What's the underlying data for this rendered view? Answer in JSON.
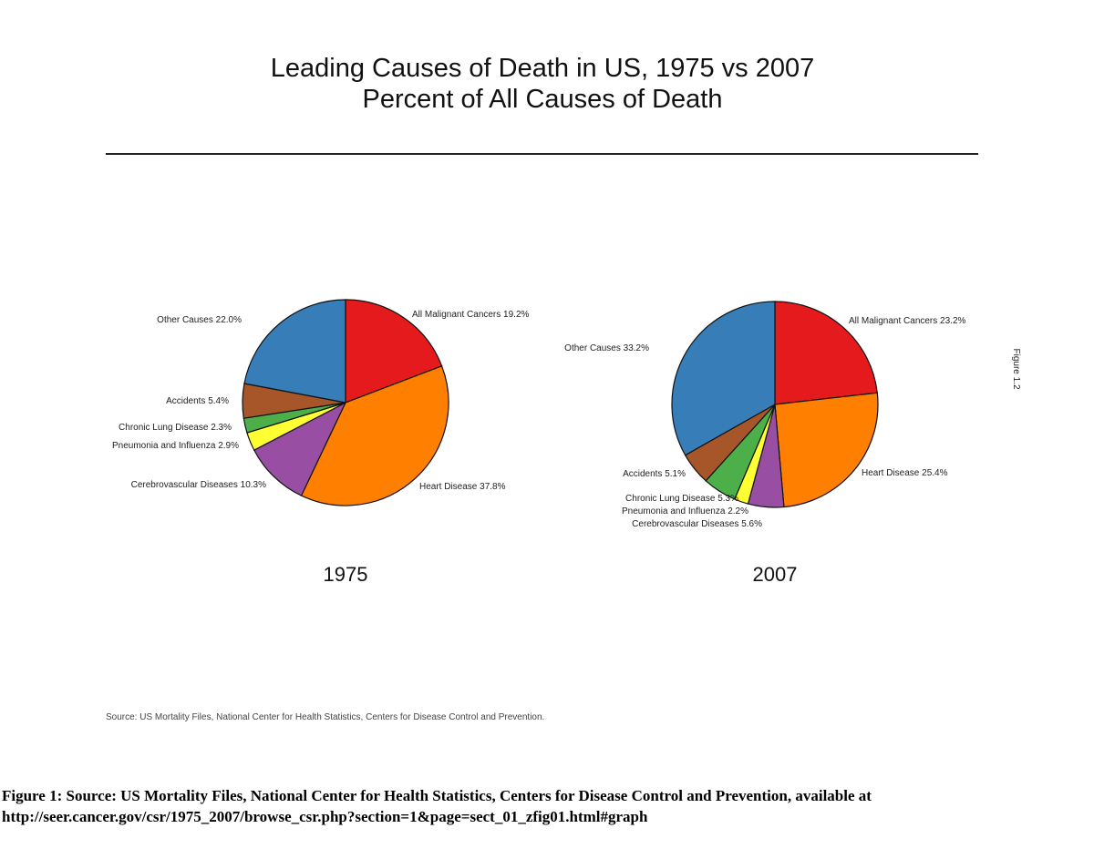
{
  "header": {
    "title": "Leading Causes of Death in US, 1975 vs 2007",
    "subtitle": "Percent of All Causes of Death"
  },
  "side_label": "Figure 1.2",
  "source_note": "Source: US Mortality Files, National Center for Health Statistics, Centers for Disease Control and Prevention.",
  "caption": {
    "line1": "Figure 1: Source: US Mortality Files, National Center for Health Statistics, Centers for Disease Control and Prevention, available at",
    "line2": "http://seer.cancer.gov/csr/1975_2007/browse_csr.php?section=1&page=sect_01_zfig01.html#graph"
  },
  "chart_data": [
    {
      "type": "pie",
      "title": "1975",
      "slices": [
        {
          "name": "All Malignant Cancers",
          "value": 19.2,
          "label": "All Malignant Cancers 19.2%",
          "color": "#e41a1c"
        },
        {
          "name": "Heart Disease",
          "value": 37.8,
          "label": "Heart Disease 37.8%",
          "color": "#ff7f00"
        },
        {
          "name": "Cerebrovascular Diseases",
          "value": 10.3,
          "label": "Cerebrovascular Diseases 10.3%",
          "color": "#984ea3"
        },
        {
          "name": "Pneumonia and Influenza",
          "value": 2.9,
          "label": "Pneumonia and Influenza 2.9%",
          "color": "#ffff33"
        },
        {
          "name": "Chronic Lung Disease",
          "value": 2.3,
          "label": "Chronic Lung Disease 2.3%",
          "color": "#4daf4a"
        },
        {
          "name": "Accidents",
          "value": 5.4,
          "label": "Accidents 5.4%",
          "color": "#a65628"
        },
        {
          "name": "Other Causes",
          "value": 22.0,
          "label": "Other Causes 22.0%",
          "color": "#377eb8"
        }
      ]
    },
    {
      "type": "pie",
      "title": "2007",
      "slices": [
        {
          "name": "All Malignant Cancers",
          "value": 23.2,
          "label": "All Malignant Cancers 23.2%",
          "color": "#e41a1c"
        },
        {
          "name": "Heart Disease",
          "value": 25.4,
          "label": "Heart Disease 25.4%",
          "color": "#ff7f00"
        },
        {
          "name": "Cerebrovascular Diseases",
          "value": 5.6,
          "label": "Cerebrovascular Diseases 5.6%",
          "color": "#984ea3"
        },
        {
          "name": "Pneumonia and Influenza",
          "value": 2.2,
          "label": "Pneumonia and Influenza 2.2%",
          "color": "#ffff33"
        },
        {
          "name": "Chronic Lung Disease",
          "value": 5.3,
          "label": "Chronic Lung Disease 5.3%",
          "color": "#4daf4a"
        },
        {
          "name": "Accidents",
          "value": 5.1,
          "label": "Accidents 5.1%",
          "color": "#a65628"
        },
        {
          "name": "Other Causes",
          "value": 33.2,
          "label": "Other Causes 33.2%",
          "color": "#377eb8"
        }
      ]
    }
  ]
}
